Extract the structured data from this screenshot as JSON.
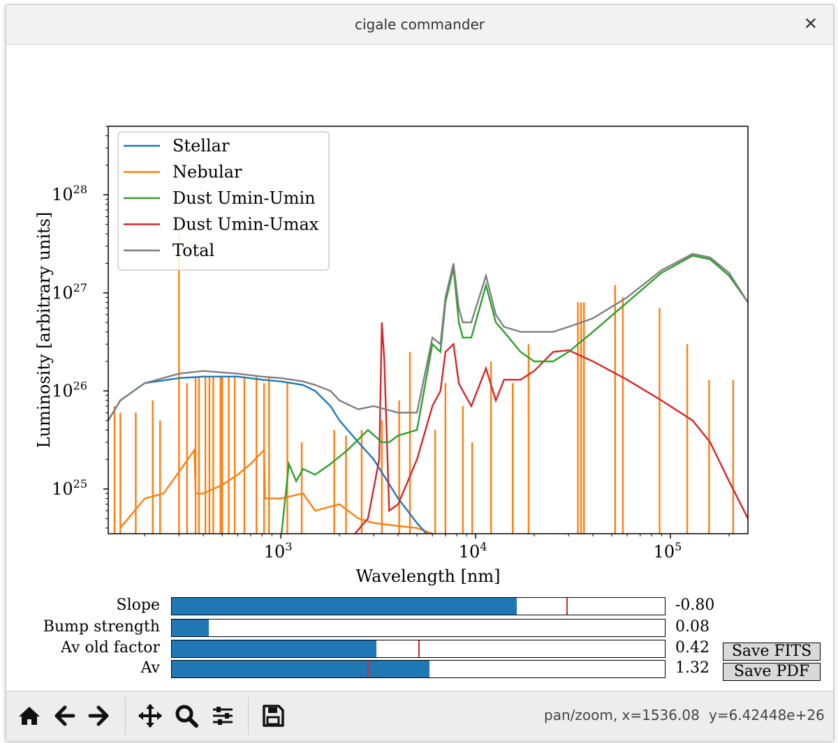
{
  "window": {
    "title": "cigale commander",
    "close_icon": "close-icon"
  },
  "chart_data": {
    "type": "line",
    "title": "",
    "xlabel": "Wavelength [nm]",
    "ylabel": "Luminosity [arbitrary units]",
    "xscale": "log",
    "yscale": "log",
    "xlim": [
      130,
      250000
    ],
    "ylim": [
      3.5e+24,
      5e+28
    ],
    "xticks": [
      {
        "mant": "10",
        "exp": "3",
        "value": 1000
      },
      {
        "mant": "10",
        "exp": "4",
        "value": 10000
      },
      {
        "mant": "10",
        "exp": "5",
        "value": 100000
      }
    ],
    "yticks": [
      {
        "mant": "10",
        "exp": "25",
        "value": 1e+25
      },
      {
        "mant": "10",
        "exp": "26",
        "value": 1e+26
      },
      {
        "mant": "10",
        "exp": "27",
        "value": 1e+27
      },
      {
        "mant": "10",
        "exp": "28",
        "value": 1e+28
      }
    ],
    "legend_position": "top-left",
    "grid": false,
    "series": [
      {
        "name": "Stellar",
        "color": "#1f77b4",
        "x": [
          130,
          150,
          200,
          300,
          400,
          600,
          800,
          1000,
          1300,
          1500,
          1800,
          2000,
          2500,
          3000,
          4000,
          5000,
          6000,
          7000
        ],
        "y": [
          5e+25,
          8e+25,
          1.2e+26,
          1.35e+26,
          1.4e+26,
          1.4e+26,
          1.3e+26,
          1.25e+26,
          1.15e+26,
          1e+26,
          7e+25,
          5e+25,
          3e+25,
          2e+25,
          8e+24,
          4.5e+24,
          3e+24,
          2e+24
        ]
      },
      {
        "name": "Nebular",
        "color": "#ff7f0e",
        "x": [
          150,
          200,
          250,
          300,
          360,
          365,
          400,
          500,
          600,
          700,
          820,
          830,
          1000,
          1300,
          1500,
          2000,
          2500,
          3000,
          4000,
          5000,
          6000
        ],
        "y": [
          4e+24,
          8e+24,
          9e+24,
          1.5e+25,
          2.5e+25,
          9e+24,
          9e+24,
          1.1e+25,
          1.4e+25,
          1.8e+25,
          2.5e+25,
          8e+24,
          8e+24,
          9e+24,
          6e+24,
          7e+24,
          5e+24,
          4.5e+24,
          4.2e+24,
          4e+24,
          3.5e+24
        ],
        "lines": [
          {
            "x": 140,
            "y": 7e+25
          },
          {
            "x": 150,
            "y": 6e+25
          },
          {
            "x": 180,
            "y": 6e+25
          },
          {
            "x": 220,
            "y": 8e+25
          },
          {
            "x": 240,
            "y": 5e+25
          },
          {
            "x": 300,
            "y": 4e+27
          },
          {
            "x": 330,
            "y": 1.2e+26
          },
          {
            "x": 365,
            "y": 1.4e+26
          },
          {
            "x": 380,
            "y": 1.4e+26
          },
          {
            "x": 410,
            "y": 1.4e+26
          },
          {
            "x": 430,
            "y": 1.4e+26
          },
          {
            "x": 450,
            "y": 1.4e+26
          },
          {
            "x": 490,
            "y": 1.4e+26
          },
          {
            "x": 500,
            "y": 1.4e+26
          },
          {
            "x": 540,
            "y": 1.4e+26
          },
          {
            "x": 580,
            "y": 1.4e+26
          },
          {
            "x": 650,
            "y": 1.4e+26
          },
          {
            "x": 750,
            "y": 1.4e+26
          },
          {
            "x": 820,
            "y": 1.2e+26
          },
          {
            "x": 870,
            "y": 1.4e+26
          },
          {
            "x": 1080,
            "y": 1.2e+26
          },
          {
            "x": 1280,
            "y": 3e+25
          },
          {
            "x": 1880,
            "y": 4e+25
          },
          {
            "x": 2160,
            "y": 3.5e+25
          },
          {
            "x": 2600,
            "y": 4e+25
          },
          {
            "x": 3300,
            "y": 5e+25
          },
          {
            "x": 4050,
            "y": 8e+25
          },
          {
            "x": 4600,
            "y": 2.5e+26
          },
          {
            "x": 6200,
            "y": 4e+25
          },
          {
            "x": 7000,
            "y": 1.2e+26
          },
          {
            "x": 8600,
            "y": 7e+25
          },
          {
            "x": 9600,
            "y": 3e+25
          },
          {
            "x": 12000,
            "y": 2e+26
          },
          {
            "x": 15500,
            "y": 1.2e+26
          },
          {
            "x": 18700,
            "y": 3e+26
          },
          {
            "x": 33500,
            "y": 8e+26
          },
          {
            "x": 34800,
            "y": 8e+26
          },
          {
            "x": 36000,
            "y": 8e+26
          },
          {
            "x": 52000,
            "y": 1.2e+27
          },
          {
            "x": 57000,
            "y": 9e+26
          },
          {
            "x": 88000,
            "y": 7e+26
          },
          {
            "x": 122000,
            "y": 3e+26
          },
          {
            "x": 158000,
            "y": 1.3e+26
          },
          {
            "x": 210000,
            "y": 1.3e+26
          }
        ]
      },
      {
        "name": "Dust Umin-Umin",
        "color": "#2ca02c",
        "x": [
          1000,
          1100,
          1200,
          1300,
          1500,
          1800,
          2200,
          2800,
          3300,
          3600,
          4000,
          5000,
          6000,
          6600,
          7000,
          7700,
          8200,
          8600,
          9500,
          11300,
          12700,
          14000,
          17000,
          20000,
          25000,
          30000,
          40000,
          60000,
          90000,
          130000,
          160000,
          200000,
          250000
        ],
        "y": [
          3e+24,
          1.8e+25,
          1.2e+25,
          1.6e+25,
          1.4e+25,
          1.8e+25,
          2.5e+25,
          4e+25,
          3e+25,
          3e+25,
          3.5e+25,
          4e+25,
          3e+26,
          2.5e+26,
          8e+26,
          1.8e+27,
          5e+26,
          3.5e+26,
          3.5e+26,
          1.2e+27,
          5e+26,
          4e+26,
          2.5e+26,
          2e+26,
          2e+26,
          2.5e+26,
          4e+26,
          8e+26,
          1.6e+27,
          2.4e+27,
          2.2e+27,
          1.5e+27,
          8e+26
        ]
      },
      {
        "name": "Dust Umin-Umax",
        "color": "#d62728",
        "x": [
          2400,
          2800,
          3200,
          3300,
          3400,
          3600,
          4000,
          5000,
          6000,
          6600,
          7000,
          7700,
          8200,
          8600,
          9500,
          11300,
          12700,
          14000,
          17000,
          20000,
          25000,
          30000,
          40000,
          60000,
          90000,
          130000,
          160000,
          200000,
          250000
        ],
        "y": [
          3.5e+24,
          5e+24,
          2e+25,
          5e+26,
          2e+26,
          6e+24,
          7e+24,
          2e+25,
          7e+25,
          1e+26,
          2.5e+26,
          3e+26,
          1.2e+26,
          1e+26,
          7e+25,
          1.7e+26,
          8e+25,
          1.3e+26,
          1.3e+26,
          1.6e+26,
          2.5e+26,
          2.6e+26,
          2e+26,
          1.3e+26,
          8e+25,
          5e+25,
          3e+25,
          1.2e+25,
          5e+24
        ]
      },
      {
        "name": "Total",
        "color": "#7f7f7f",
        "x": [
          130,
          150,
          200,
          300,
          400,
          600,
          800,
          1000,
          1300,
          1500,
          1800,
          2000,
          2500,
          3000,
          4000,
          5000,
          6000,
          6600,
          7000,
          7700,
          8200,
          8600,
          9500,
          11300,
          12700,
          14000,
          17000,
          20000,
          25000,
          30000,
          40000,
          60000,
          90000,
          130000,
          160000,
          200000,
          250000
        ],
        "y": [
          5e+25,
          8e+25,
          1.2e+26,
          1.5e+26,
          1.6e+26,
          1.5e+26,
          1.4e+26,
          1.35e+26,
          1.25e+26,
          1.15e+26,
          1e+26,
          8e+25,
          6.5e+25,
          7e+25,
          6e+25,
          6e+25,
          3.5e+26,
          3e+26,
          9e+26,
          2e+27,
          7e+26,
          5e+26,
          5e+26,
          1.5e+27,
          6e+26,
          4.5e+26,
          4e+26,
          4e+26,
          4e+26,
          4.5e+26,
          5.5e+26,
          9e+26,
          1.7e+27,
          2.5e+27,
          2.3e+27,
          1.6e+27,
          8e+26
        ]
      }
    ]
  },
  "sliders": [
    {
      "label": "Slope",
      "value_text": "-0.80",
      "fill": 0.7,
      "init": 0.8
    },
    {
      "label": "Bump strength",
      "value_text": "0.08",
      "fill": 0.075,
      "init": null
    },
    {
      "label": "Av old factor",
      "value_text": "0.42",
      "fill": 0.415,
      "init": 0.5
    },
    {
      "label": "Av",
      "value_text": "1.32",
      "fill": 0.523,
      "init": 0.397
    }
  ],
  "buttons": {
    "save_fits": "Save FITS",
    "save_pdf": "Save PDF"
  },
  "toolbar": {
    "icons": [
      "home-icon",
      "back-icon",
      "forward-icon",
      "pan-icon",
      "zoom-icon",
      "configure-subplots-icon",
      "save-icon"
    ],
    "status_mode": "pan/zoom, x=1536.08",
    "status_y": "y=6.42448e+26"
  }
}
